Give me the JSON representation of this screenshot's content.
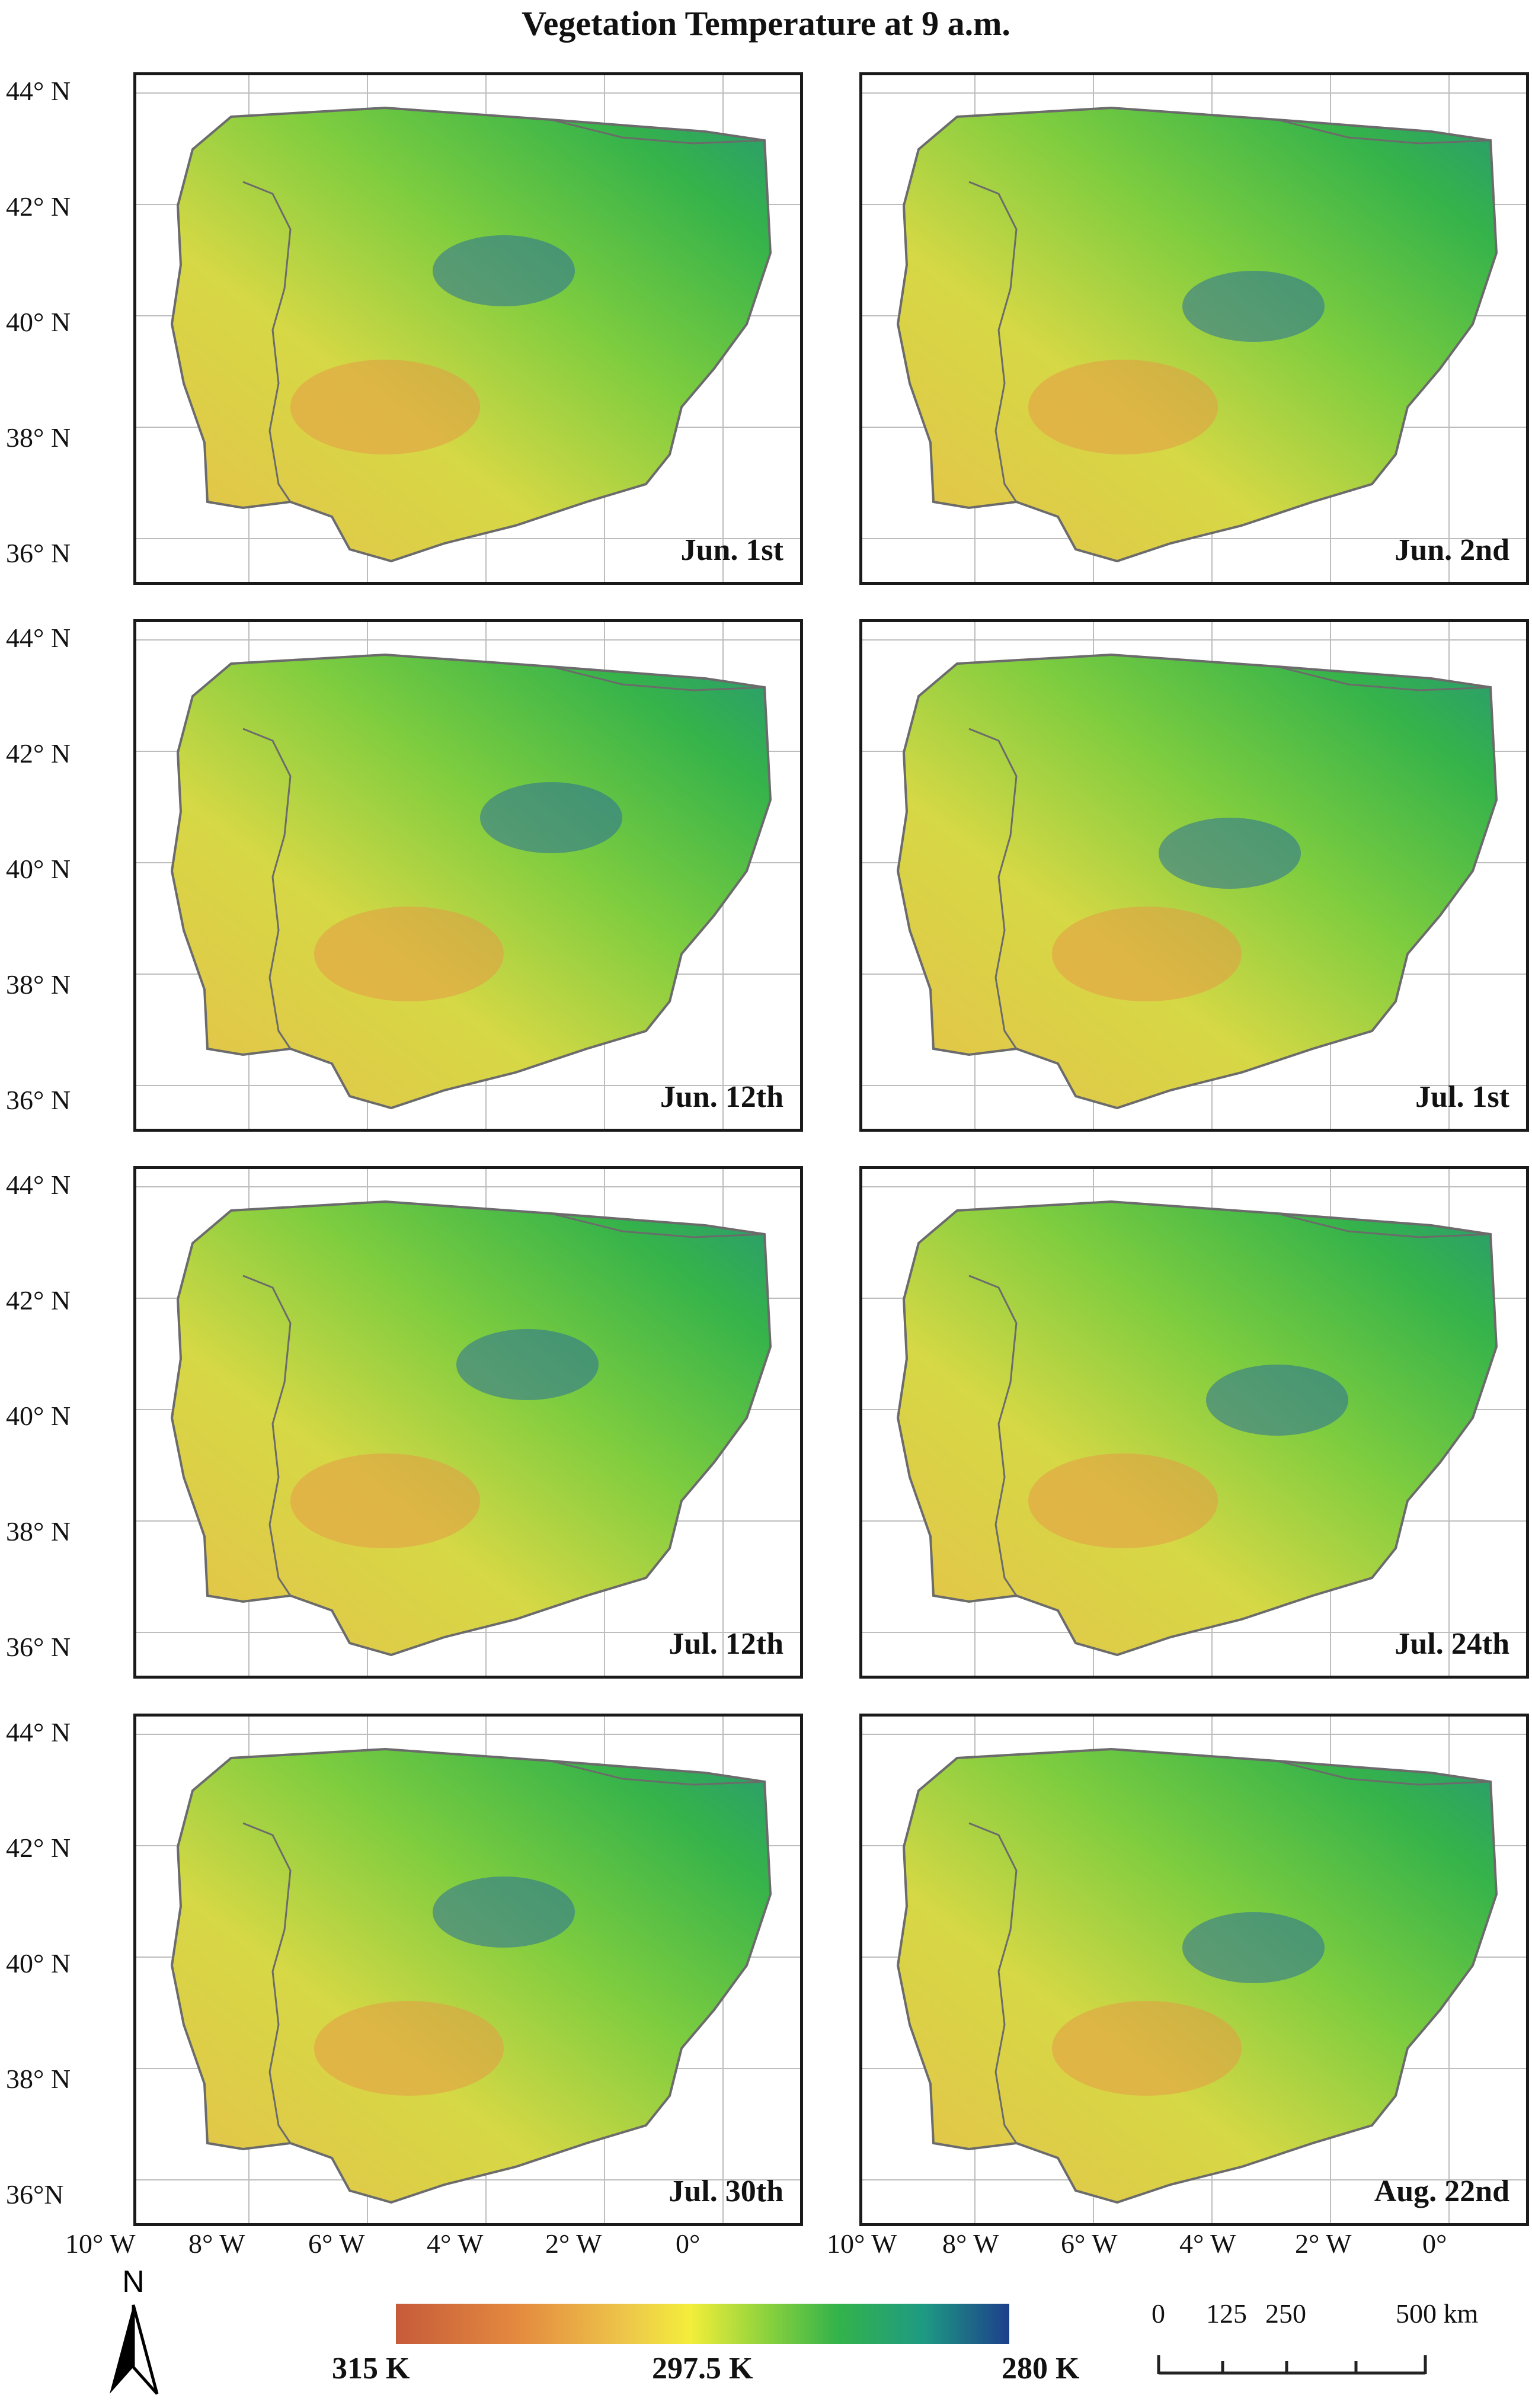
{
  "title": "Vegetation Temperature at 9 a.m.",
  "latitude_labels": [
    "44° N",
    "42° N",
    "40° N",
    "38° N",
    "36° N"
  ],
  "latitude_labels_last": [
    "44° N",
    "42° N",
    "40° N",
    "38° N",
    "36°N"
  ],
  "longitude_labels": [
    "10° W",
    "8° W",
    "6° W",
    "4° W",
    "2° W",
    "0°"
  ],
  "panels": [
    {
      "date": "Jun. 1st"
    },
    {
      "date": "Jun. 2nd"
    },
    {
      "date": "Jun. 12th"
    },
    {
      "date": "Jul. 1st"
    },
    {
      "date": "Jul. 12th"
    },
    {
      "date": "Jul. 24th"
    },
    {
      "date": "Jul. 30th"
    },
    {
      "date": "Aug. 22nd"
    }
  ],
  "colorbar": {
    "min_label": "315 K",
    "mid_label": "297.5 K",
    "max_label": "280 K",
    "colors": {
      "hot": "#c65b3a",
      "warm": "#eec84a",
      "mid": "#8fd33d",
      "cool": "#1e9a83",
      "cold": "#1d3f8c"
    }
  },
  "scale_bar": {
    "labels": [
      "0",
      "125",
      "250",
      "500 km"
    ]
  },
  "north_arrow": {
    "label": "N",
    "icon": "north-arrow-icon"
  }
}
